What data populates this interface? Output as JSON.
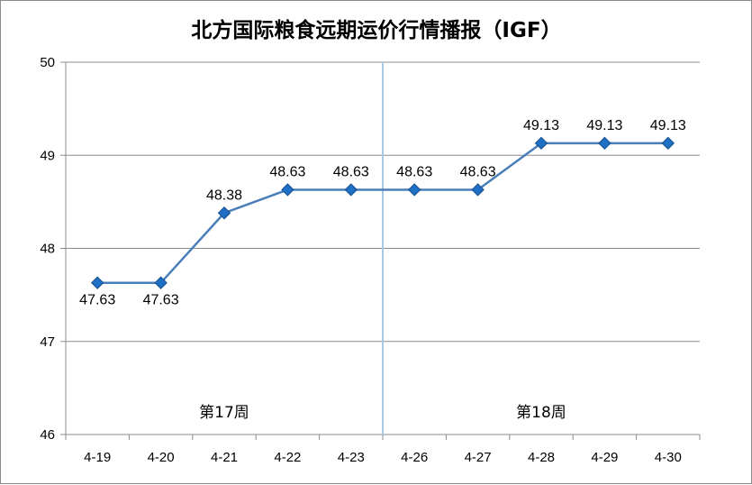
{
  "chart_data": {
    "type": "line",
    "title": "北方国际粮食远期运价行情播报（IGF）",
    "xlabel": "",
    "ylabel": "",
    "categories": [
      "4-19",
      "4-20",
      "4-21",
      "4-22",
      "4-23",
      "4-26",
      "4-27",
      "4-28",
      "4-29",
      "4-30"
    ],
    "series": [
      {
        "values": [
          47.63,
          47.63,
          48.38,
          48.63,
          48.63,
          48.63,
          48.63,
          49.13,
          49.13,
          49.13
        ],
        "data_labels": [
          "47.63",
          "47.63",
          "48.38",
          "48.63",
          "48.63",
          "48.63",
          "48.63",
          "49.13",
          "49.13",
          "49.13"
        ],
        "color": "#4a7ebb",
        "marker_color": "#1f6fc5"
      }
    ],
    "ylim": [
      46,
      50
    ],
    "yticks": [
      "46",
      "47",
      "48",
      "49",
      "50"
    ],
    "grid": true,
    "legend": "none",
    "annotations": [
      {
        "text": "第17周",
        "category_span": [
          0,
          4
        ]
      },
      {
        "text": "第18周",
        "category_span": [
          5,
          9
        ]
      }
    ],
    "week_divider_after_index": 4,
    "divider_color": "#a9c9e3"
  }
}
